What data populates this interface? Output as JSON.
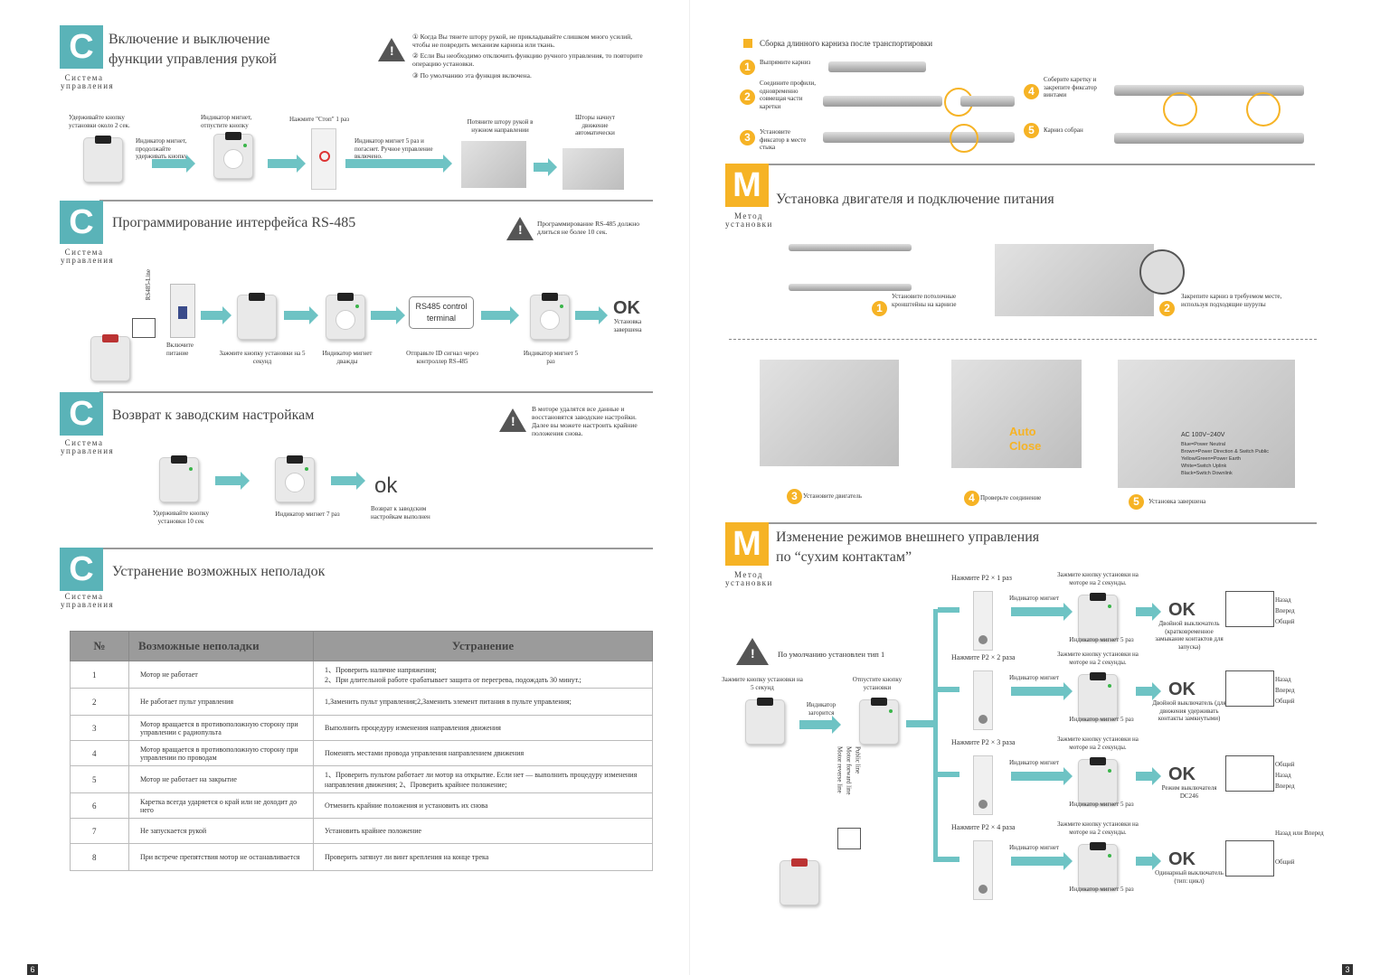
{
  "left": {
    "s1": {
      "badge": "C",
      "badge_label": "Система управления",
      "title": "Включение и выключение функции управления рукой",
      "notes": [
        "① Когда Вы тянете штору рукой, не прикладывайте слишком много усилий, чтобы не повредить механизм карниза или ткань.",
        "② Если Вы необходимо отключить функцию ручного управления, то повторите операцию установки.",
        "③ По умолчанию эта функция включена."
      ],
      "steps": [
        "Удерживайте кнопку установки около 2 сек.",
        "Индикатор мигнет, отпустите кнопку",
        "Индикатор мигнет, продолжайте удерживать кнопку",
        "Нажмите \"Стоп\" 1 раз",
        "Индикатор мигнет 5 раз и погаснет. Ручное управление включено.",
        "Потяните штору рукой в нужном направлении",
        "Шторы начнут движение автоматически"
      ]
    },
    "s2": {
      "badge": "C",
      "badge_label": "Система управления",
      "title": "Программирование интерфейса RS-485",
      "note": "Программирование RS-485 должно длиться не более 10 сек.",
      "wire": "RS485-Line",
      "terminal": "RS485 control terminal",
      "steps": [
        "Включите питание",
        "Зажмите кнопку установки на 5 секунд",
        "Индикатор мигнет дважды",
        "Отправьте ID сигнал через контроллер RS-485",
        "Индикатор мигнет 5 раз",
        "Установка завершена"
      ],
      "ok": "OK"
    },
    "s3": {
      "badge": "C",
      "badge_label": "Система управления",
      "title": "Возврат к заводским настройкам",
      "note": "В моторе удалятся все данные и восстановятся заводские настройки. Далее вы можете настроить крайние положения снова.",
      "steps": [
        "Удерживайте кнопку установки 10 сек",
        "Индикатор мигнет 7 раз",
        "Возврат к заводским настройкам выполнен"
      ],
      "ok": "ok"
    },
    "s4": {
      "badge": "C",
      "badge_label": "Система управления",
      "title": "Устранение возможных неполадок",
      "headers": [
        "№",
        "Возможные неполадки",
        "Устранение"
      ],
      "rows": [
        [
          "1",
          "Мотор не работает",
          "1、Проверить наличие напряжения;\n2、При длительной работе срабатывает защита от перегрева, подождать 30 минут.;"
        ],
        [
          "2",
          "Не работает пульт управления",
          "1,Заменить пульт управления;2,Заменить элемент питания в пульте управления;"
        ],
        [
          "3",
          "Мотор вращается в противоположную сторону при управлении с радиопульта",
          "Выполнить процедуру изменения направления движения"
        ],
        [
          "4",
          "Мотор вращается в противоположную сторону при управлении по проводам",
          "Поменять местами провода управления направлением движения"
        ],
        [
          "5",
          "Мотор не работает на закрытие",
          "1、Проверить пультом работает ли мотор на открытие. Если нет — выполнить процедуру изменения направления движения;  2、Проверить крайнее положение;"
        ],
        [
          "6",
          "Каретка всегда ударяется о край или не доходит до него",
          "Отменить крайние положения и установить их снова"
        ],
        [
          "7",
          "Не запускается рукой",
          "Установить крайнее положение"
        ],
        [
          "8",
          "При встрече препятствия мотор не останавливается",
          "Проверить затянут ли винт крепления на конце трека"
        ]
      ]
    },
    "page_number": "6"
  },
  "right": {
    "assembly": {
      "title": "Сборка длинного карниза после транспортировки",
      "steps": [
        {
          "n": "1",
          "text": "Выпрямите карниз"
        },
        {
          "n": "2",
          "text": "Соедините профили, одновременно совмещая части каретки"
        },
        {
          "n": "3",
          "text": "Установите фиксатор в месте стыка"
        },
        {
          "n": "4",
          "text": "Соберите каретку и закрепите фиксатор винтами"
        },
        {
          "n": "5",
          "text": "Карниз собран"
        }
      ]
    },
    "m1": {
      "badge": "M",
      "badge_label": "Метод установки",
      "title": "Установка двигателя и подключение питания",
      "steps": [
        {
          "n": "1",
          "text": "Установите потолочные кронштейны на карнизе"
        },
        {
          "n": "2",
          "text": "Закрепите карниз в требуемом месте, используя подходящие шурупы"
        },
        {
          "n": "3",
          "text": "Установите двигатель"
        },
        {
          "n": "4",
          "text": "Проверьте соединение"
        },
        {
          "n": "5",
          "text": "Установка завершена"
        }
      ],
      "auto_close": "Auto Close",
      "wiring": [
        "AC 100V~240V",
        "Blue=Power Neutral",
        "Brown=Power Direction & Switch Public",
        "Yellow/Green=Power Earth",
        "White=Switch Uplink",
        "Black=Switch Downlink"
      ]
    },
    "m2": {
      "badge": "M",
      "badge_label": "Метод установки",
      "title": "Изменение режимов внешнего управления по “сухим контактам”",
      "default_note": "По умолчанию установлен тип 1",
      "press5": "Зажмите кнопку установки на 5 секунд",
      "release": "Отпустите кнопку установки",
      "lit": "Индикатор загорится",
      "wires": [
        "Motor reverse line",
        "Motor forward line",
        "Public line"
      ],
      "modes": [
        {
          "press": "Нажмите P2 × 1 раз",
          "blink": "Индикатор мигнет",
          "hold": "Зажмите кнопку установки на моторе на 2 секунды.",
          "blink5": "Индикатор мигнет  5 раз",
          "desc": "Двойной выключатель (кратковременное замыкание контактов для запуска)",
          "labels": [
            "Назад",
            "Вперед",
            "Общий"
          ]
        },
        {
          "press": "Нажмите P2 × 2 раза",
          "blink": "Индикатор мигнет",
          "hold": "Зажмите кнопку установки на моторе на 2 секунды.",
          "blink5": "Индикатор мигнет  5 раз",
          "desc": "Двойной выключатель (для движения удерживать контакты замкнутыми)",
          "labels": [
            "Назад",
            "Вперед",
            "Общий"
          ]
        },
        {
          "press": "Нажмите P2 × 3 раза",
          "blink": "Индикатор мигнет",
          "hold": "Зажмите кнопку установки на моторе на 2 секунды.",
          "blink5": "Индикатор мигнет  5 раз",
          "desc": "Режим выключателя DC246",
          "labels": [
            "Общий",
            "Назад",
            "Вперед"
          ]
        },
        {
          "press": "Нажмите P2 × 4 раза",
          "blink": "Индикатор мигнет",
          "hold": "Зажмите кнопку установки на моторе на 2 секунды.",
          "blink5": "Индикатор мигнет  5 раз",
          "desc": "Одинарный выключатель (тип: цикл)",
          "labels": [
            "Назад или Вперед",
            "Общий"
          ]
        }
      ],
      "ok": "OK"
    },
    "page_number": "3"
  }
}
